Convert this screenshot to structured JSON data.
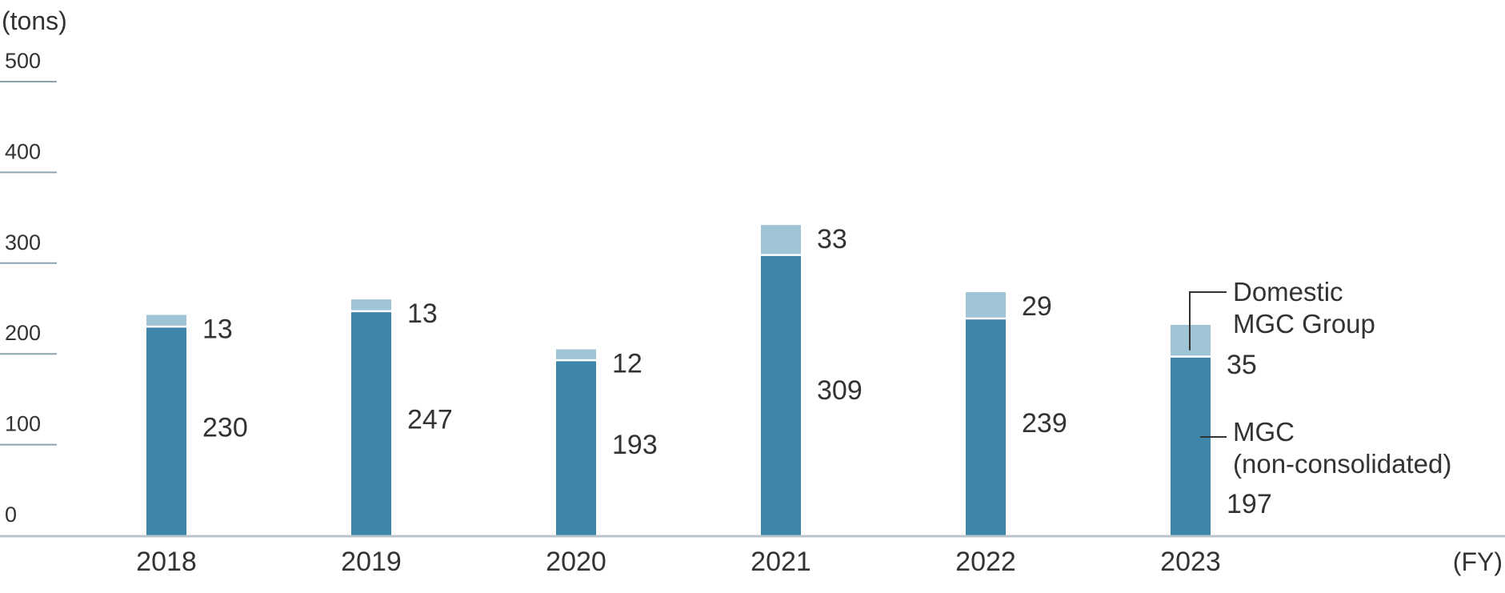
{
  "chart_data": {
    "type": "bar",
    "stacked": true,
    "ylabel": "(tons)",
    "xlabel": "(FY)",
    "ylim": [
      0,
      500
    ],
    "yticks": [
      0,
      100,
      200,
      300,
      400,
      500
    ],
    "categories": [
      "2018",
      "2019",
      "2020",
      "2021",
      "2022",
      "2023"
    ],
    "series": [
      {
        "name": "MGC\n(non-consolidated)",
        "values": [
          230,
          247,
          193,
          309,
          239,
          197
        ],
        "color": "#3d86aa"
      },
      {
        "name": "Domestic\nMGC Group",
        "values": [
          13,
          13,
          12,
          33,
          29,
          35
        ],
        "color": "#9fc4d6"
      }
    ],
    "legend": "callouts on last bar (right side)",
    "grid": false
  }
}
